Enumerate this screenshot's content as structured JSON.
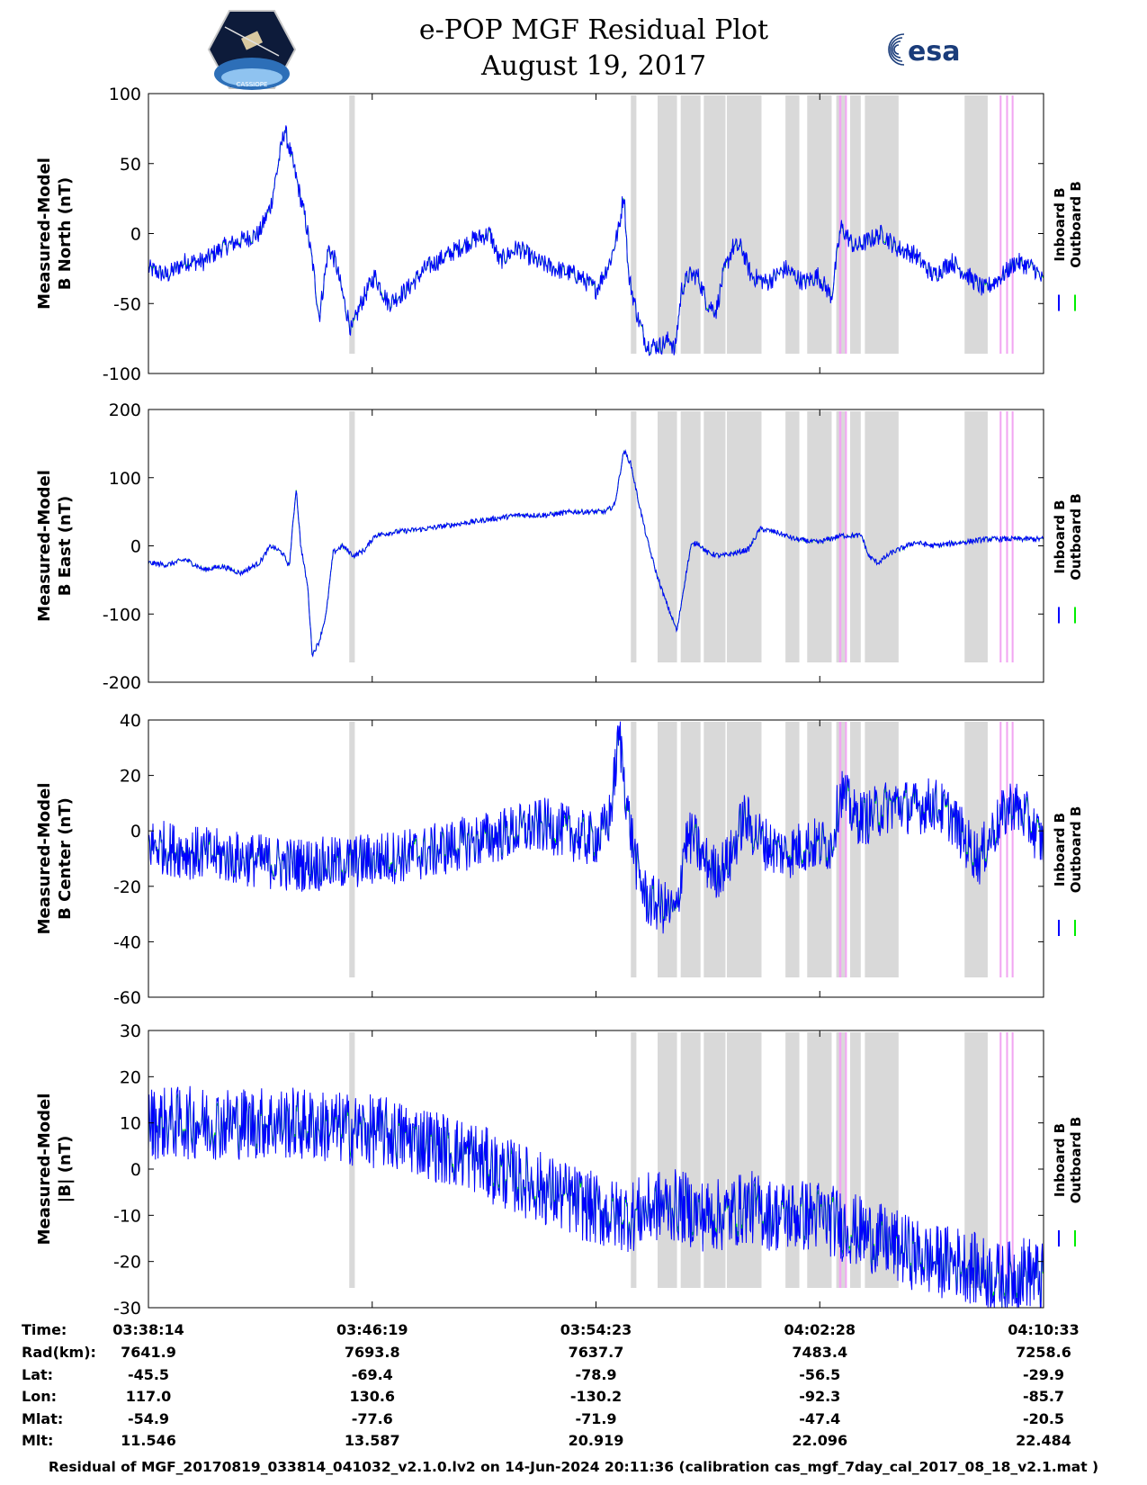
{
  "header": {
    "title_line1": "e-POP MGF Residual Plot",
    "title_line2": "August 19, 2017",
    "logo_left_text": "CASSIOPE",
    "logo_right_text": "esa"
  },
  "colors": {
    "inboard": "#0000ff",
    "outboard": "#00ee00",
    "gray_band": "#d9d9d9",
    "pink_band": "#f2a6f2"
  },
  "chart_data": {
    "type": "line",
    "x_range_seconds": [
      0,
      1939
    ],
    "x_ticks": [
      "03:38:14",
      "03:46:19",
      "03:54:23",
      "04:02:28",
      "04:10:33"
    ],
    "legend": [
      "Inboard B",
      "Outboard B"
    ],
    "gray_bands_seconds": [
      [
        435,
        447
      ],
      [
        1045,
        1057
      ],
      [
        1103,
        1145
      ],
      [
        1153,
        1196
      ],
      [
        1203,
        1250
      ],
      [
        1253,
        1328
      ],
      [
        1328,
        1325
      ],
      [
        1380,
        1410
      ],
      [
        1427,
        1480
      ],
      [
        1490,
        1510
      ],
      [
        1520,
        1543
      ],
      [
        1552,
        1625
      ],
      [
        1768,
        1818
      ]
    ],
    "pink_bands_seconds": [
      [
        1496,
        1501
      ],
      [
        1509,
        1513
      ],
      [
        1844,
        1848
      ],
      [
        1858,
        1862
      ],
      [
        1870,
        1874
      ]
    ],
    "panels": [
      {
        "id": "b-north",
        "ylabel_line1": "Measured-Model",
        "ylabel_line2": "B North (nT)",
        "ylim": [
          -100,
          100
        ],
        "yticks": [
          100,
          50,
          0,
          -50,
          -100
        ],
        "series_trend": [
          [
            0,
            -25
          ],
          [
            40,
            -30
          ],
          [
            80,
            -20
          ],
          [
            120,
            -20
          ],
          [
            160,
            -10
          ],
          [
            200,
            -5
          ],
          [
            240,
            0
          ],
          [
            265,
            20
          ],
          [
            295,
            75
          ],
          [
            320,
            40
          ],
          [
            340,
            10
          ],
          [
            355,
            -20
          ],
          [
            370,
            -60
          ],
          [
            390,
            -10
          ],
          [
            405,
            -20
          ],
          [
            425,
            -50
          ],
          [
            440,
            -70
          ],
          [
            460,
            -50
          ],
          [
            490,
            -30
          ],
          [
            520,
            -50
          ],
          [
            560,
            -40
          ],
          [
            600,
            -25
          ],
          [
            650,
            -15
          ],
          [
            700,
            -5
          ],
          [
            740,
            0
          ],
          [
            760,
            -20
          ],
          [
            800,
            -10
          ],
          [
            840,
            -20
          ],
          [
            880,
            -25
          ],
          [
            930,
            -30
          ],
          [
            970,
            -40
          ],
          [
            1000,
            -20
          ],
          [
            1020,
            5
          ],
          [
            1030,
            30
          ],
          [
            1040,
            -30
          ],
          [
            1060,
            -60
          ],
          [
            1080,
            -80
          ],
          [
            1110,
            -80
          ],
          [
            1130,
            -75
          ],
          [
            1140,
            -85
          ],
          [
            1155,
            -40
          ],
          [
            1170,
            -30
          ],
          [
            1190,
            -30
          ],
          [
            1210,
            -50
          ],
          [
            1230,
            -55
          ],
          [
            1245,
            -30
          ],
          [
            1265,
            -10
          ],
          [
            1285,
            -10
          ],
          [
            1305,
            -30
          ],
          [
            1340,
            -35
          ],
          [
            1380,
            -25
          ],
          [
            1420,
            -35
          ],
          [
            1450,
            -30
          ],
          [
            1480,
            -45
          ],
          [
            1500,
            5
          ],
          [
            1530,
            -10
          ],
          [
            1560,
            -5
          ],
          [
            1590,
            0
          ],
          [
            1620,
            -10
          ],
          [
            1660,
            -15
          ],
          [
            1700,
            -30
          ],
          [
            1740,
            -20
          ],
          [
            1775,
            -30
          ],
          [
            1810,
            -40
          ],
          [
            1850,
            -30
          ],
          [
            1880,
            -20
          ],
          [
            1920,
            -25
          ],
          [
            1939,
            -35
          ]
        ],
        "noise_amplitude": 7
      },
      {
        "id": "b-east",
        "ylabel_line1": "Measured-Model",
        "ylabel_line2": "B East (nT)",
        "ylim": [
          -200,
          200
        ],
        "yticks": [
          200,
          100,
          0,
          -100,
          -200
        ],
        "series_trend": [
          [
            0,
            -25
          ],
          [
            40,
            -28
          ],
          [
            80,
            -20
          ],
          [
            120,
            -35
          ],
          [
            160,
            -30
          ],
          [
            200,
            -40
          ],
          [
            240,
            -25
          ],
          [
            265,
            0
          ],
          [
            290,
            -10
          ],
          [
            305,
            -30
          ],
          [
            320,
            85
          ],
          [
            330,
            0
          ],
          [
            345,
            -60
          ],
          [
            355,
            -160
          ],
          [
            370,
            -140
          ],
          [
            385,
            -100
          ],
          [
            400,
            -10
          ],
          [
            420,
            0
          ],
          [
            445,
            -15
          ],
          [
            470,
            -5
          ],
          [
            490,
            15
          ],
          [
            530,
            20
          ],
          [
            600,
            25
          ],
          [
            650,
            30
          ],
          [
            700,
            35
          ],
          [
            750,
            40
          ],
          [
            800,
            45
          ],
          [
            860,
            45
          ],
          [
            920,
            50
          ],
          [
            990,
            50
          ],
          [
            1010,
            60
          ],
          [
            1030,
            140
          ],
          [
            1045,
            120
          ],
          [
            1060,
            70
          ],
          [
            1080,
            10
          ],
          [
            1100,
            -40
          ],
          [
            1120,
            -80
          ],
          [
            1145,
            -125
          ],
          [
            1160,
            -60
          ],
          [
            1175,
            0
          ],
          [
            1190,
            5
          ],
          [
            1210,
            -10
          ],
          [
            1240,
            -15
          ],
          [
            1275,
            -10
          ],
          [
            1300,
            -5
          ],
          [
            1325,
            25
          ],
          [
            1360,
            20
          ],
          [
            1400,
            10
          ],
          [
            1450,
            5
          ],
          [
            1500,
            15
          ],
          [
            1545,
            15
          ],
          [
            1560,
            -15
          ],
          [
            1580,
            -25
          ],
          [
            1610,
            -10
          ],
          [
            1660,
            5
          ],
          [
            1700,
            0
          ],
          [
            1760,
            5
          ],
          [
            1820,
            10
          ],
          [
            1880,
            10
          ],
          [
            1939,
            10
          ]
        ],
        "noise_amplitude": 4
      },
      {
        "id": "b-center",
        "ylabel_line1": "Measured-Model",
        "ylabel_line2": "B Center (nT)",
        "ylim": [
          -60,
          40
        ],
        "yticks": [
          40,
          20,
          0,
          -20,
          -40,
          -60
        ],
        "series_trend": [
          [
            0,
            -5
          ],
          [
            100,
            -8
          ],
          [
            200,
            -10
          ],
          [
            300,
            -12
          ],
          [
            400,
            -12
          ],
          [
            500,
            -10
          ],
          [
            600,
            -8
          ],
          [
            700,
            -4
          ],
          [
            800,
            0
          ],
          [
            860,
            2
          ],
          [
            900,
            0
          ],
          [
            950,
            -3
          ],
          [
            980,
            -2
          ],
          [
            1000,
            5
          ],
          [
            1020,
            35
          ],
          [
            1040,
            5
          ],
          [
            1060,
            -15
          ],
          [
            1080,
            -25
          ],
          [
            1120,
            -28
          ],
          [
            1145,
            -30
          ],
          [
            1160,
            -5
          ],
          [
            1180,
            -2
          ],
          [
            1200,
            -10
          ],
          [
            1230,
            -15
          ],
          [
            1260,
            -10
          ],
          [
            1290,
            5
          ],
          [
            1310,
            0
          ],
          [
            1340,
            -5
          ],
          [
            1380,
            -8
          ],
          [
            1430,
            -5
          ],
          [
            1480,
            -5
          ],
          [
            1500,
            15
          ],
          [
            1530,
            5
          ],
          [
            1560,
            5
          ],
          [
            1590,
            8
          ],
          [
            1620,
            10
          ],
          [
            1660,
            8
          ],
          [
            1700,
            10
          ],
          [
            1740,
            5
          ],
          [
            1775,
            -5
          ],
          [
            1800,
            -10
          ],
          [
            1830,
            0
          ],
          [
            1870,
            10
          ],
          [
            1900,
            5
          ],
          [
            1939,
            -5
          ]
        ],
        "noise_amplitude": 10
      },
      {
        "id": "b-magnitude",
        "ylabel_line1": "Measured-Model",
        "ylabel_line2": "|B| (nT)",
        "ylim": [
          -30,
          30
        ],
        "yticks": [
          30,
          20,
          10,
          0,
          -10,
          -20,
          -30
        ],
        "series_trend": [
          [
            0,
            10
          ],
          [
            100,
            10
          ],
          [
            200,
            10
          ],
          [
            300,
            10
          ],
          [
            400,
            9
          ],
          [
            500,
            8
          ],
          [
            600,
            6
          ],
          [
            650,
            4
          ],
          [
            700,
            3
          ],
          [
            750,
            0
          ],
          [
            800,
            -2
          ],
          [
            850,
            -4
          ],
          [
            900,
            -6
          ],
          [
            950,
            -8
          ],
          [
            1000,
            -10
          ],
          [
            1050,
            -10
          ],
          [
            1100,
            -8
          ],
          [
            1150,
            -8
          ],
          [
            1200,
            -10
          ],
          [
            1250,
            -10
          ],
          [
            1300,
            -8
          ],
          [
            1350,
            -10
          ],
          [
            1400,
            -10
          ],
          [
            1450,
            -10
          ],
          [
            1500,
            -12
          ],
          [
            1550,
            -14
          ],
          [
            1600,
            -16
          ],
          [
            1650,
            -18
          ],
          [
            1700,
            -20
          ],
          [
            1750,
            -20
          ],
          [
            1800,
            -22
          ],
          [
            1850,
            -24
          ],
          [
            1900,
            -22
          ],
          [
            1939,
            -24
          ]
        ],
        "noise_amplitude": 8
      }
    ]
  },
  "info_table": {
    "rows": [
      {
        "label": "Time:",
        "values": [
          "03:38:14",
          "03:46:19",
          "03:54:23",
          "04:02:28",
          "04:10:33"
        ]
      },
      {
        "label": "Rad(km):",
        "values": [
          "7641.9",
          "7693.8",
          "7637.7",
          "7483.4",
          "7258.6"
        ]
      },
      {
        "label": "Lat:",
        "values": [
          "-45.5",
          "-69.4",
          "-78.9",
          "-56.5",
          "-29.9"
        ]
      },
      {
        "label": "Lon:",
        "values": [
          "117.0",
          "130.6",
          "-130.2",
          "-92.3",
          "-85.7"
        ]
      },
      {
        "label": "Mlat:",
        "values": [
          "-54.9",
          "-77.6",
          "-71.9",
          "-47.4",
          "-20.5"
        ]
      },
      {
        "label": "Mlt:",
        "values": [
          "11.546",
          "13.587",
          "20.919",
          "22.096",
          "22.484"
        ]
      }
    ]
  },
  "footer": {
    "text": "Residual of MGF_20170819_033814_041032_v2.1.0.lv2 on 14-Jun-2024 20:11:36 (calibration cas_mgf_7day_cal_2017_08_18_v2.1.mat )"
  }
}
